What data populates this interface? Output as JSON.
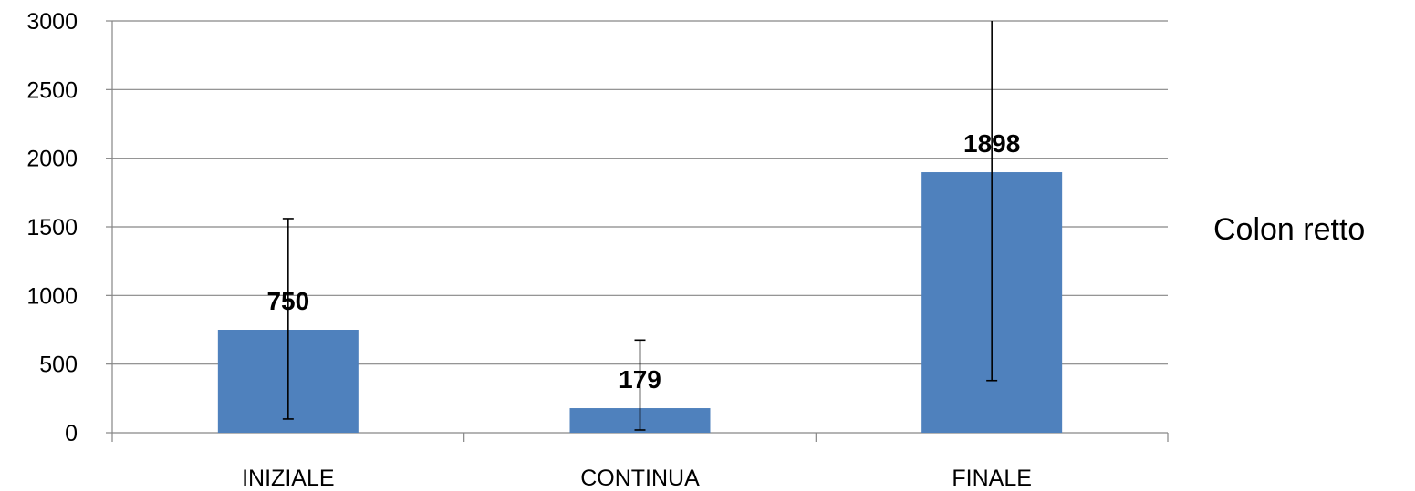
{
  "chart_data": {
    "type": "bar",
    "categories": [
      "INIZIALE",
      "CONTINUA",
      "FINALE"
    ],
    "series": [
      {
        "name": "Colon retto",
        "values": [
          750,
          179,
          1898
        ],
        "error_low": [
          100,
          20,
          380
        ],
        "error_high": [
          1560,
          675,
          3000
        ],
        "color": "#4f81bd"
      }
    ],
    "y_ticks": [
      "0",
      "500",
      "1000",
      "1500",
      "2000",
      "2500",
      "3000"
    ],
    "data_labels": [
      "750",
      "179",
      "1898"
    ],
    "ylim": [
      0,
      3000
    ],
    "grid": true,
    "legend_position": "right",
    "title": "",
    "xlabel": "",
    "ylabel": ""
  },
  "colors": {
    "bar": "#4f81bd",
    "gridline": "#868686",
    "axis": "#868686",
    "text": "#000000"
  }
}
